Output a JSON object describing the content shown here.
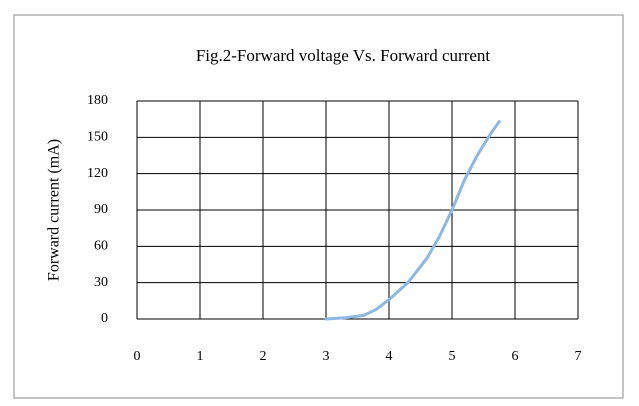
{
  "chart_data": {
    "type": "line",
    "title": "Fig.2-Forward voltage Vs. Forward current",
    "y_label": "Forward current (mA)",
    "x": [
      3.0,
      3.3,
      3.6,
      3.8,
      4.0,
      4.3,
      4.6,
      4.8,
      5.0,
      5.2,
      5.4,
      5.6,
      5.75
    ],
    "values": [
      0,
      1,
      3,
      8,
      16,
      30,
      50,
      68,
      90,
      115,
      135,
      152,
      163
    ],
    "color": "#8db8e4",
    "xlim": [
      0,
      7
    ],
    "xticks": [
      0,
      1,
      2,
      3,
      4,
      5,
      6,
      7
    ],
    "ylim": [
      0,
      180
    ],
    "yticks": [
      0,
      30,
      60,
      90,
      120,
      150,
      180
    ],
    "grid": true
  }
}
